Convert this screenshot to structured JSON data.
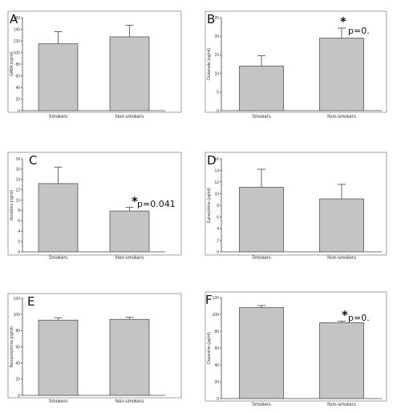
{
  "chart_data": [
    {
      "panel": "A",
      "type": "bar",
      "ylabel": "GABA (ng/ml)",
      "categories": [
        "Smokers",
        "Non-smokers"
      ],
      "values": [
        115,
        127
      ],
      "errors": [
        21,
        20
      ],
      "ylim": [
        0,
        160
      ],
      "yticks": [
        0,
        20,
        40,
        60,
        80,
        100,
        120,
        140,
        160
      ],
      "annotation": null
    },
    {
      "panel": "B",
      "type": "bar",
      "ylabel": "Glutamate (ng/ml)",
      "categories": [
        "Smokers",
        "Non-smokers"
      ],
      "values": [
        12,
        19.5
      ],
      "errors": [
        2.8,
        2.7
      ],
      "ylim": [
        0,
        25
      ],
      "yticks": [
        0,
        5,
        10,
        15,
        20,
        25
      ],
      "annotation": {
        "star": "*",
        "text": "p=0."
      }
    },
    {
      "panel": "C",
      "type": "bar",
      "ylabel": "Serotonin (ng/ml)",
      "categories": [
        "Smokers",
        "Non-smokers"
      ],
      "values": [
        13.2,
        7.9
      ],
      "errors": [
        3.2,
        0.7
      ],
      "ylim": [
        0,
        18
      ],
      "yticks": [
        0,
        2,
        4,
        6,
        8,
        10,
        12,
        14,
        16,
        18
      ],
      "annotation": {
        "star": "*",
        "text": "p=0.041"
      }
    },
    {
      "panel": "D",
      "type": "bar",
      "ylabel": "Epinephrine (pg/ml)",
      "categories": [
        "Smokers",
        "Non-smokers"
      ],
      "values": [
        11.1,
        9.1
      ],
      "errors": [
        3.1,
        2.5
      ],
      "ylim": [
        0,
        16
      ],
      "yticks": [
        0,
        2,
        4,
        6,
        8,
        10,
        12,
        14,
        16
      ],
      "annotation": null
    },
    {
      "panel": "E",
      "type": "bar",
      "ylabel": "Norepinephrine (pg/ml)",
      "categories": [
        "Smokers",
        "Non-smokers"
      ],
      "values": [
        93,
        94
      ],
      "errors": [
        3,
        2.5
      ],
      "ylim": [
        0,
        120
      ],
      "yticks": [
        0,
        20,
        40,
        60,
        80,
        100,
        120
      ],
      "annotation": null
    },
    {
      "panel": "F",
      "type": "bar",
      "ylabel": "Dopamine (pg/ml)",
      "categories": [
        "Smokers",
        "Non-smokers"
      ],
      "values": [
        108,
        90
      ],
      "errors": [
        2.5,
        2
      ],
      "ylim": [
        0,
        120
      ],
      "yticks": [
        0,
        20,
        40,
        60,
        80,
        100,
        120
      ],
      "annotation": {
        "star": "*",
        "text": "p=0."
      }
    }
  ],
  "colors": {
    "bar": "#c4c4c4",
    "bar_edge": "#555555",
    "frame": "#8a8a8a"
  }
}
